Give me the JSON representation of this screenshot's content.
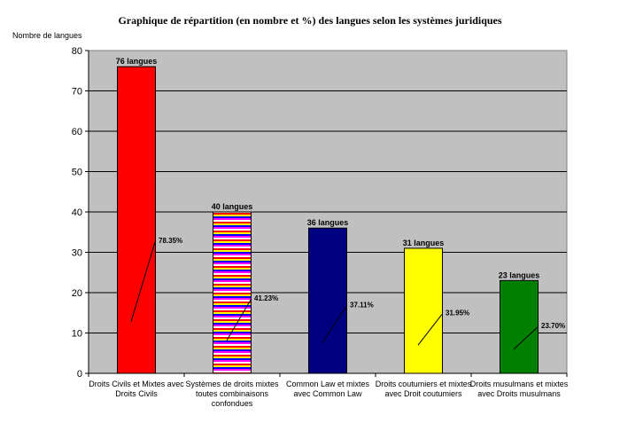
{
  "chart_data": {
    "type": "bar",
    "title": "Graphique de répartition (en nombre et %) des  langues selon les systèmes juridiques",
    "ylabel": "Nombre de langues",
    "xlabel": "",
    "ylim": [
      0,
      80
    ],
    "yticks": [
      0,
      10,
      20,
      30,
      40,
      50,
      60,
      70,
      80
    ],
    "grid": true,
    "legend": "none",
    "plot_background": "#c0c0c0",
    "categories": [
      [
        "Droits Civils et Mixtes avec",
        "Droits Civils"
      ],
      [
        "Systèmes de droits mixtes",
        "toutes combinaisons",
        "confondues"
      ],
      [
        "Common Law et mixtes",
        "avec Common Law"
      ],
      [
        "Droits coutumiers et mixtes",
        "avec Droit coutumiers"
      ],
      [
        "Droits musulmans et mixtes",
        "avec Droits musulmans"
      ]
    ],
    "values": [
      76,
      40,
      36,
      31,
      23
    ],
    "value_labels": [
      "76 langues",
      "40 langues",
      "36 langues",
      "31 langues",
      "23 langues"
    ],
    "percent_labels": [
      "78.35%",
      "41.23%",
      "37.11%",
      "31.95%",
      "23.70%"
    ],
    "percent_values": [
      78.35,
      41.23,
      37.11,
      31.95,
      23.7
    ],
    "colors": [
      "#ff0000",
      "striped",
      "#000080",
      "#ffff00",
      "#008000"
    ],
    "stripe_colors": [
      "#ff0000",
      "#ffff00",
      "#0000ff",
      "#ff00ff",
      "#ffffff"
    ]
  }
}
